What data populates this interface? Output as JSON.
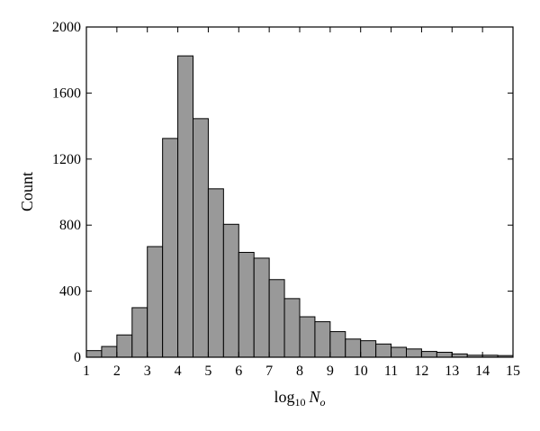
{
  "chart_data": {
    "type": "bar",
    "title": "",
    "xlabel": "log10 No",
    "xlabel_parts": {
      "base": "log",
      "sub": "10",
      "var": "N",
      "var_sub": "o"
    },
    "ylabel": "Count",
    "xlim": [
      1,
      15
    ],
    "ylim": [
      0,
      2000
    ],
    "xticks": [
      "1",
      "2",
      "3",
      "4",
      "5",
      "6",
      "7",
      "8",
      "9",
      "10",
      "11",
      "12",
      "13",
      "14",
      "15"
    ],
    "yticks": [
      "0",
      "400",
      "800",
      "1200",
      "1600",
      "2000"
    ],
    "grid": false,
    "bin_width": 0.5,
    "bin_starts": [
      1,
      1.5,
      2,
      2.5,
      3,
      3.5,
      4,
      4.5,
      5,
      5.5,
      6,
      6.5,
      7,
      7.5,
      8,
      8.5,
      9,
      9.5,
      10,
      10.5,
      11,
      11.5,
      12,
      12.5,
      13,
      13.5,
      14,
      14.5
    ],
    "values": [
      40,
      65,
      135,
      300,
      670,
      1325,
      1825,
      1445,
      1020,
      805,
      635,
      600,
      470,
      355,
      245,
      215,
      155,
      110,
      100,
      80,
      60,
      50,
      35,
      30,
      20,
      12,
      12,
      10
    ],
    "bar_color": "#999999"
  }
}
